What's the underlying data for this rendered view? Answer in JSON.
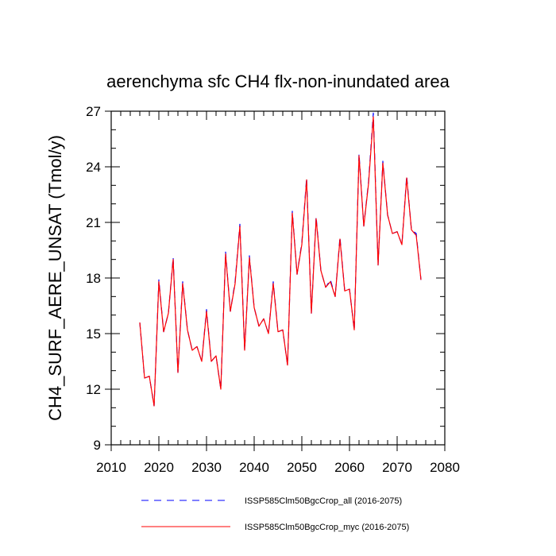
{
  "chart_data": {
    "type": "line",
    "title": "aerenchyma sfc CH4 flx-non-inundated area",
    "xlabel": "",
    "ylabel": "CH4_SURF_AERE_UNSAT  (Tmol/y)",
    "xlim": [
      2010,
      2080
    ],
    "ylim": [
      9,
      27
    ],
    "x_ticks": [
      2010,
      2020,
      2030,
      2040,
      2050,
      2060,
      2070,
      2080
    ],
    "y_ticks": [
      9,
      12,
      15,
      18,
      21,
      24,
      27
    ],
    "grid": false,
    "legend_position": "bottom",
    "x": [
      2016,
      2017,
      2018,
      2019,
      2020,
      2021,
      2022,
      2023,
      2024,
      2025,
      2026,
      2027,
      2028,
      2029,
      2030,
      2031,
      2032,
      2033,
      2034,
      2035,
      2036,
      2037,
      2038,
      2039,
      2040,
      2041,
      2042,
      2043,
      2044,
      2045,
      2046,
      2047,
      2048,
      2049,
      2050,
      2051,
      2052,
      2053,
      2054,
      2055,
      2056,
      2057,
      2058,
      2059,
      2060,
      2061,
      2062,
      2063,
      2064,
      2065,
      2066,
      2067,
      2068,
      2069,
      2070,
      2071,
      2072,
      2073,
      2074,
      2075
    ],
    "series": [
      {
        "name": "ISSP585Clm50BgcCrop_all (2016-2075)",
        "color": "#0000ff",
        "style": "dashed",
        "values": [
          15.6,
          12.6,
          12.7,
          11.1,
          17.9,
          15.1,
          16.1,
          19.1,
          12.9,
          17.8,
          15.2,
          14.1,
          14.3,
          13.5,
          16.3,
          13.5,
          13.8,
          12.0,
          19.4,
          16.2,
          17.8,
          20.9,
          14.1,
          19.2,
          16.4,
          15.4,
          15.8,
          15.0,
          17.8,
          15.1,
          15.2,
          13.3,
          21.6,
          18.2,
          19.9,
          23.4,
          16.1,
          21.3,
          18.4,
          17.5,
          17.9,
          17.0,
          20.2,
          17.3,
          17.4,
          15.2,
          24.7,
          20.8,
          23.2,
          26.9,
          18.7,
          24.3,
          21.4,
          20.4,
          20.5,
          19.8,
          23.5,
          20.6,
          20.4,
          17.9
        ]
      },
      {
        "name": "ISSP585Clm50BgcCrop_myc (2016-2075)",
        "color": "#ff0000",
        "style": "solid",
        "values": [
          15.6,
          12.6,
          12.7,
          11.1,
          17.8,
          15.1,
          16.1,
          19.0,
          12.9,
          17.7,
          15.2,
          14.1,
          14.3,
          13.5,
          16.2,
          13.5,
          13.8,
          12.0,
          19.3,
          16.2,
          17.7,
          20.8,
          14.1,
          19.1,
          16.4,
          15.4,
          15.8,
          15.0,
          17.7,
          15.1,
          15.2,
          13.3,
          21.5,
          18.2,
          19.8,
          23.3,
          16.1,
          21.2,
          18.4,
          17.5,
          17.8,
          17.0,
          20.1,
          17.3,
          17.4,
          15.2,
          24.6,
          20.8,
          23.1,
          26.7,
          18.7,
          24.2,
          21.4,
          20.4,
          20.5,
          19.8,
          23.4,
          20.6,
          20.3,
          17.9
        ]
      }
    ]
  }
}
